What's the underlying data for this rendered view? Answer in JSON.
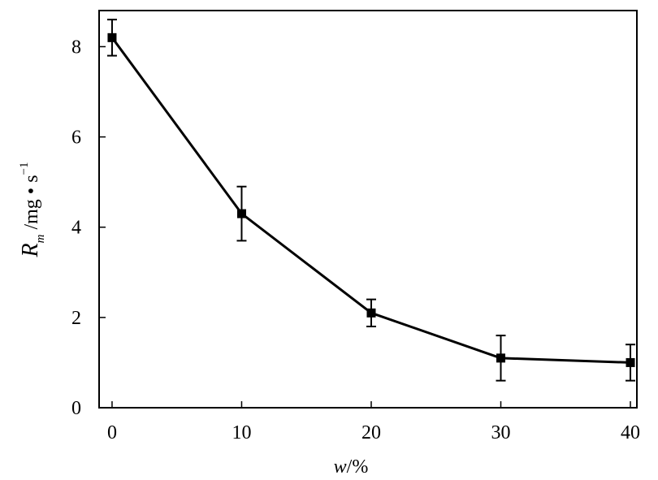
{
  "chart_data": {
    "type": "line",
    "title": "",
    "xlabel": {
      "var": "w",
      "rest": "/%"
    },
    "ylabel": {
      "var": "R",
      "sub": "m",
      "rest": " /mg • s",
      "sup": "−1"
    },
    "x": [
      0,
      10,
      20,
      30,
      40
    ],
    "series": [
      {
        "values": [
          8.2,
          4.3,
          2.1,
          1.1,
          1.0
        ],
        "errors": [
          0.4,
          0.6,
          0.3,
          0.5,
          0.4
        ],
        "marker": "square",
        "color": "#000000"
      }
    ],
    "xlim": [
      -1,
      40.5
    ],
    "ylim": [
      0,
      8.8
    ],
    "xticks": [
      0,
      10,
      20,
      30,
      40
    ],
    "yticks": [
      0,
      2,
      4,
      6,
      8
    ],
    "grid": false,
    "legend": "none"
  }
}
